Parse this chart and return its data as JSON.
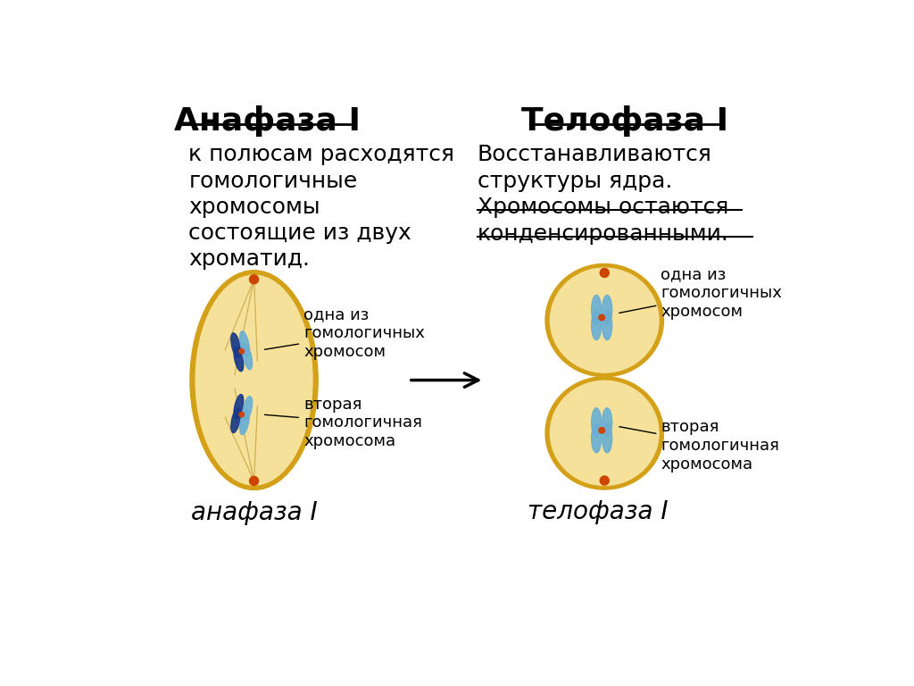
{
  "bg_color": "#ffffff",
  "title_left": "Анафаза I",
  "title_right": "Телофаза I",
  "text_left_lines": [
    "к полюсам расходятся",
    "гомологичные",
    "хромосомы",
    "состоящие из двух",
    "хроматид."
  ],
  "text_right_line1": "Восстанавливаются",
  "text_right_line2": "структуры ядра.",
  "text_right_line3": "Хромосомы остаются",
  "text_right_line4": "конденсированными.",
  "label_top_left": "одна из\nгомологичных\nхромосом",
  "label_bottom_left": "вторая\nгомологичная\nхромосома",
  "label_top_right": "одна из\nгомологичных\nхромосом",
  "label_bottom_right": "вторая\nгомологичная\nхромосома",
  "caption_left": "анафаза I",
  "caption_right": "телофаза I",
  "cell_color_outer": "#D4A017",
  "cell_color_inner": "#F5E19A",
  "chr_dark_blue": "#1a3a8a",
  "chr_light_blue": "#6aafd4",
  "centromere_color": "#cc4400",
  "spindle_color": "#c8a84b",
  "title_fontsize": 26,
  "body_fontsize": 18,
  "label_fontsize": 13,
  "caption_fontsize": 20
}
